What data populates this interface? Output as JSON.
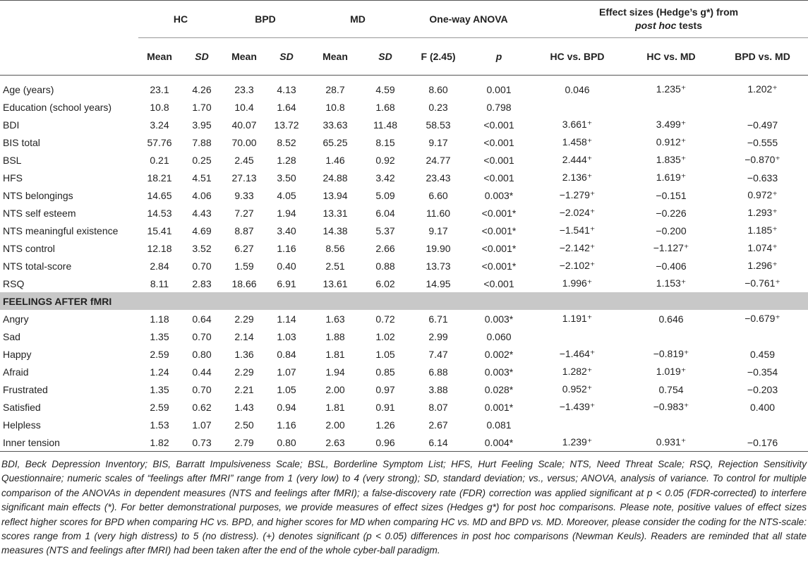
{
  "table": {
    "group_headers": [
      "HC",
      "BPD",
      "MD",
      "One-way ANOVA"
    ],
    "effect_header": [
      "Effect sizes (Hedge’s g*) from",
      "post hoc",
      "tests"
    ],
    "sub_headers": [
      "Mean",
      "SD",
      "Mean",
      "SD",
      "Mean",
      "SD",
      "F (2.45)",
      "p",
      "HC vs. BPD",
      "HC vs. MD",
      "BPD vs. MD"
    ],
    "groups": [
      {
        "rows": [
          {
            "label": "Age (years)",
            "cells": [
              "23.1",
              "4.26",
              "23.3",
              "4.13",
              "28.7",
              "4.59",
              "8.60",
              "0.001",
              "0.046",
              "1.235⁺",
              "1.202⁺"
            ]
          },
          {
            "label": "Education (school years)",
            "cells": [
              "10.8",
              "1.70",
              "10.4",
              "1.64",
              "10.8",
              "1.68",
              "0.23",
              "0.798"
            ]
          },
          {
            "label": "BDI",
            "cells": [
              "3.24",
              "3.95",
              "40.07",
              "13.72",
              "33.63",
              "11.48",
              "58.53",
              "<0.001",
              "3.661⁺",
              "3.499⁺",
              "−0.497"
            ]
          },
          {
            "label": "BIS total",
            "cells": [
              "57.76",
              "7.88",
              "70.00",
              "8.52",
              "65.25",
              "8.15",
              "9.17",
              "<0.001",
              "1.458⁺",
              "0.912⁺",
              "−0.555"
            ]
          },
          {
            "label": "BSL",
            "cells": [
              "0.21",
              "0.25",
              "2.45",
              "1.28",
              "1.46",
              "0.92",
              "24.77",
              "<0.001",
              "2.444⁺",
              "1.835⁺",
              "−0.870⁺"
            ]
          },
          {
            "label": "HFS",
            "cells": [
              "18.21",
              "4.51",
              "27.13",
              "3.50",
              "24.88",
              "3.42",
              "23.43",
              "<0.001",
              "2.136⁺",
              "1.619⁺",
              "−0.633"
            ]
          },
          {
            "label": "NTS belongings",
            "cells": [
              "14.65",
              "4.06",
              "9.33",
              "4.05",
              "13.94",
              "5.09",
              "6.60",
              "0.003*",
              "−1.279⁺",
              "−0.151",
              "0.972⁺"
            ]
          },
          {
            "label": "NTS self esteem",
            "cells": [
              "14.53",
              "4.43",
              "7.27",
              "1.94",
              "13.31",
              "6.04",
              "11.60",
              "<0.001*",
              "−2.024⁺",
              "−0.226",
              "1.293⁺"
            ]
          },
          {
            "label": "NTS meaningful existence",
            "cells": [
              "15.41",
              "4.69",
              "8.87",
              "3.40",
              "14.38",
              "5.37",
              "9.17",
              "<0.001*",
              "−1.541⁺",
              "−0.200",
              "1.185⁺"
            ]
          },
          {
            "label": "NTS control",
            "cells": [
              "12.18",
              "3.52",
              "6.27",
              "1.16",
              "8.56",
              "2.66",
              "19.90",
              "<0.001*",
              "−2.142⁺",
              "−1.127⁺",
              "1.074⁺"
            ]
          },
          {
            "label": "NTS total-score",
            "cells": [
              "2.84",
              "0.70",
              "1.59",
              "0.40",
              "2.51",
              "0.88",
              "13.73",
              "<0.001*",
              "−2.102⁺",
              "−0.406",
              "1.296⁺"
            ]
          },
          {
            "label": "RSQ",
            "cells": [
              "8.11",
              "2.83",
              "18.66",
              "6.91",
              "13.61",
              "6.02",
              "14.95",
              "<0.001",
              "1.996⁺",
              "1.153⁺",
              "−0.761⁺"
            ]
          }
        ]
      },
      {
        "title": "FEELINGS AFTER fMRI",
        "rows": [
          {
            "label": "Angry",
            "cells": [
              "1.18",
              "0.64",
              "2.29",
              "1.14",
              "1.63",
              "0.72",
              "6.71",
              "0.003*",
              "1.191⁺",
              "0.646",
              "−0.679⁺"
            ]
          },
          {
            "label": "Sad",
            "cells": [
              "1.35",
              "0.70",
              "2.14",
              "1.03",
              "1.88",
              "1.02",
              "2.99",
              "0.060"
            ]
          },
          {
            "label": "Happy",
            "cells": [
              "2.59",
              "0.80",
              "1.36",
              "0.84",
              "1.81",
              "1.05",
              "7.47",
              "0.002*",
              "−1.464⁺",
              "−0.819⁺",
              "0.459"
            ]
          },
          {
            "label": "Afraid",
            "cells": [
              "1.24",
              "0.44",
              "2.29",
              "1.07",
              "1.94",
              "0.85",
              "6.88",
              "0.003*",
              "1.282⁺",
              "1.019⁺",
              "−0.354"
            ]
          },
          {
            "label": "Frustrated",
            "cells": [
              "1.35",
              "0.70",
              "2.21",
              "1.05",
              "2.00",
              "0.97",
              "3.88",
              "0.028*",
              "0.952⁺",
              "0.754",
              "−0.203"
            ]
          },
          {
            "label": "Satisfied",
            "cells": [
              "2.59",
              "0.62",
              "1.43",
              "0.94",
              "1.81",
              "0.91",
              "8.07",
              "0.001*",
              "−1.439⁺",
              "−0.983⁺",
              "0.400"
            ]
          },
          {
            "label": "Helpless",
            "cells": [
              "1.53",
              "1.07",
              "2.50",
              "1.16",
              "2.00",
              "1.26",
              "2.67",
              "0.081"
            ]
          },
          {
            "label": "Inner tension",
            "cells": [
              "1.82",
              "0.73",
              "2.79",
              "0.80",
              "2.63",
              "0.96",
              "6.14",
              "0.004*",
              "1.239⁺",
              "0.931⁺",
              "−0.176"
            ]
          }
        ]
      }
    ],
    "note": "BDI, Beck Depression Inventory; BIS, Barratt Impulsiveness Scale; BSL, Borderline Symptom List; HFS, Hurt Feeling Scale; NTS, Need Threat Scale; RSQ, Rejection Sensitivity Questionnaire; numeric scales of “feelings after fMRI” range from 1 (very low) to 4 (very strong); SD, standard deviation; vs., versus; ANOVA, analysis of variance. To control for multiple comparison of the ANOVAs in dependent measures (NTS and feelings after fMRI); a false-discovery rate (FDR) correction was applied significant at p < 0.05 (FDR-corrected) to interfere significant main effects (*). For better demonstrational purposes, we provide measures of effect sizes (Hedges g*) for post hoc comparisons. Please note, positive values of effect sizes reflect higher scores for BPD when comparing HC vs. BPD, and higher scores for MD when comparing HC vs. MD and BPD vs. MD. Moreover, please consider the coding for the NTS-scale: scores range from 1 (very high distress) to 5 (no distress). (+) denotes significant (p < 0.05) differences in post hoc comparisons (Newman Keuls). Readers are reminded that all state measures (NTS and feelings after fMRI) had been taken after the end of the whole cyber-ball paradigm."
  }
}
